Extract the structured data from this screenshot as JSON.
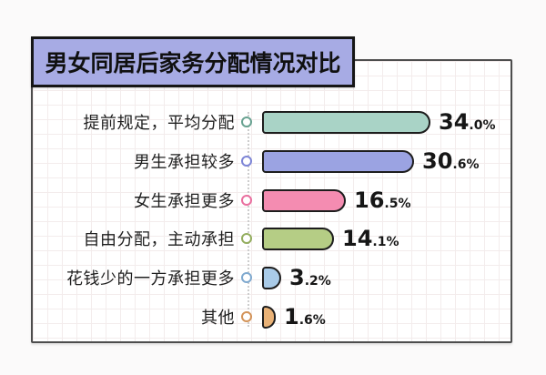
{
  "title": "男女同居后家务分配情况对比",
  "chart_data": {
    "type": "bar",
    "orientation": "horizontal",
    "title": "男女同居后家务分配情况对比",
    "categories": [
      "提前规定，平均分配",
      "男生承担较多",
      "女生承担更多",
      "自由分配，主动承担",
      "花钱少的一方承担更多",
      "其他"
    ],
    "values": [
      34.0,
      30.6,
      16.5,
      14.1,
      3.2,
      1.6
    ],
    "value_labels": [
      "34.0%",
      "30.6%",
      "16.5%",
      "14.1%",
      "3.2%",
      "1.6%"
    ],
    "bar_colors": [
      "#a9d3c6",
      "#9ba3e2",
      "#f48cb1",
      "#b5cd85",
      "#a9cbe8",
      "#e9b277"
    ],
    "marker_colors": [
      "#68a291",
      "#7d85d6",
      "#ea6f9f",
      "#93ad5e",
      "#7fa9cf",
      "#d39358"
    ],
    "xlim": [
      0,
      40
    ],
    "grid": "faint graph-paper grid on card background",
    "legend": "none",
    "bar_outline_color": "#1d1d1d",
    "axis_style": "vertical dotted baseline with circular markers per category"
  },
  "styles": {
    "title_bg": "#a7abe4",
    "title_border": "#161616",
    "card_border": "#4d4d4d",
    "page_bg": "#fbfafa"
  }
}
